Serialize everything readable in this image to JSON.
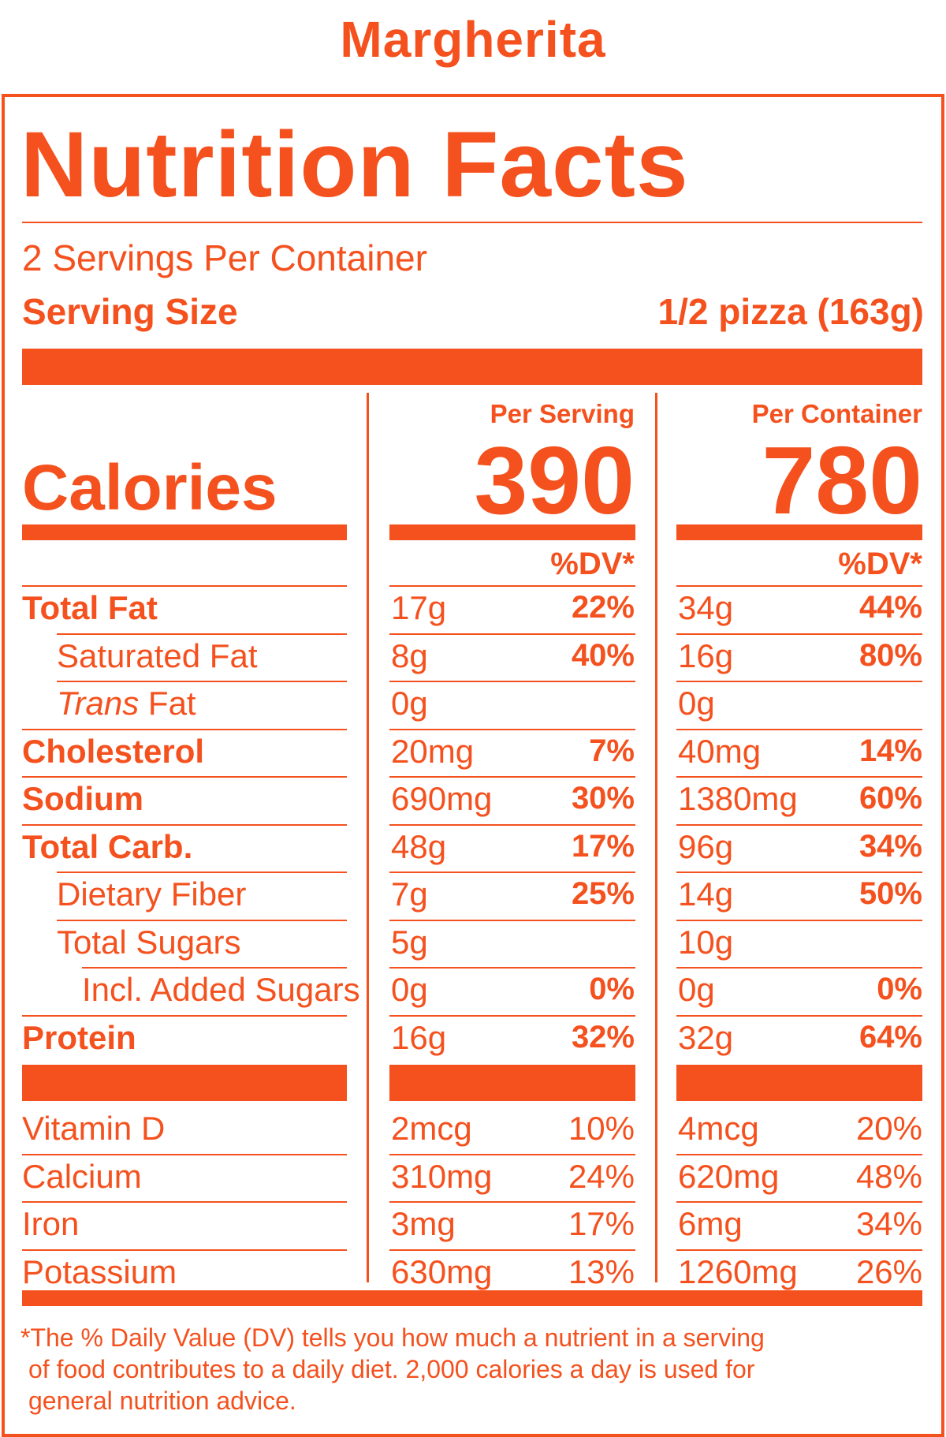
{
  "product_name": "Margherita",
  "panel_title": "Nutrition Facts",
  "servings_per_container": "2 Servings Per Container",
  "serving_size_label": "Serving Size",
  "serving_size_value": "1/2 pizza (163g)",
  "calories_label": "Calories",
  "columns": [
    {
      "header": "Per Serving",
      "calories": "390",
      "dv_header": "%DV*"
    },
    {
      "header": "Per Container",
      "calories": "780",
      "dv_header": "%DV*"
    }
  ],
  "nutrients": [
    {
      "name": "Total Fat",
      "bold": true,
      "indent": 0,
      "serving": "17g",
      "serving_dv": "22%",
      "container": "34g",
      "container_dv": "44%"
    },
    {
      "name": "Saturated Fat",
      "bold": false,
      "indent": 1,
      "serving": "8g",
      "serving_dv": "40%",
      "container": "16g",
      "container_dv": "80%"
    },
    {
      "name_italic": "Trans",
      "name": " Fat",
      "bold": false,
      "indent": 1,
      "serving": "0g",
      "serving_dv": "",
      "container": "0g",
      "container_dv": ""
    },
    {
      "name": "Cholesterol",
      "bold": true,
      "indent": 0,
      "serving": "20mg",
      "serving_dv": "7%",
      "container": "40mg",
      "container_dv": "14%"
    },
    {
      "name": "Sodium",
      "bold": true,
      "indent": 0,
      "serving": "690mg",
      "serving_dv": "30%",
      "container": "1380mg",
      "container_dv": "60%"
    },
    {
      "name": "Total Carb.",
      "bold": true,
      "indent": 0,
      "serving": "48g",
      "serving_dv": "17%",
      "container": "96g",
      "container_dv": "34%"
    },
    {
      "name": "Dietary Fiber",
      "bold": false,
      "indent": 1,
      "serving": "7g",
      "serving_dv": "25%",
      "container": "14g",
      "container_dv": "50%"
    },
    {
      "name": "Total Sugars",
      "bold": false,
      "indent": 1,
      "serving": "5g",
      "serving_dv": "",
      "container": "10g",
      "container_dv": ""
    },
    {
      "name": "Incl. Added Sugars",
      "bold": false,
      "indent": 2,
      "serving": "0g",
      "serving_dv": "0%",
      "container": "0g",
      "container_dv": "0%"
    },
    {
      "name": "Protein",
      "bold": true,
      "indent": 0,
      "serving": "16g",
      "serving_dv": "32%",
      "container": "32g",
      "container_dv": "64%"
    }
  ],
  "vitamins": [
    {
      "name": "Vitamin D",
      "serving": "2mcg",
      "serving_dv": "10%",
      "container": "4mcg",
      "container_dv": "20%"
    },
    {
      "name": "Calcium",
      "serving": "310mg",
      "serving_dv": "24%",
      "container": "620mg",
      "container_dv": "48%"
    },
    {
      "name": "Iron",
      "serving": "3mg",
      "serving_dv": "17%",
      "container": "6mg",
      "container_dv": "34%"
    },
    {
      "name": "Potassium",
      "serving": "630mg",
      "serving_dv": "13%",
      "container": "1260mg",
      "container_dv": "26%"
    }
  ],
  "footnote_lines": [
    "*The % Daily Value (DV) tells you how much a nutrient in a serving",
    "of food contributes to a daily diet. 2,000 calories a day is used for",
    "general nutrition advice."
  ],
  "colors": {
    "primary": "#f4511e",
    "background": "#ffffff"
  }
}
